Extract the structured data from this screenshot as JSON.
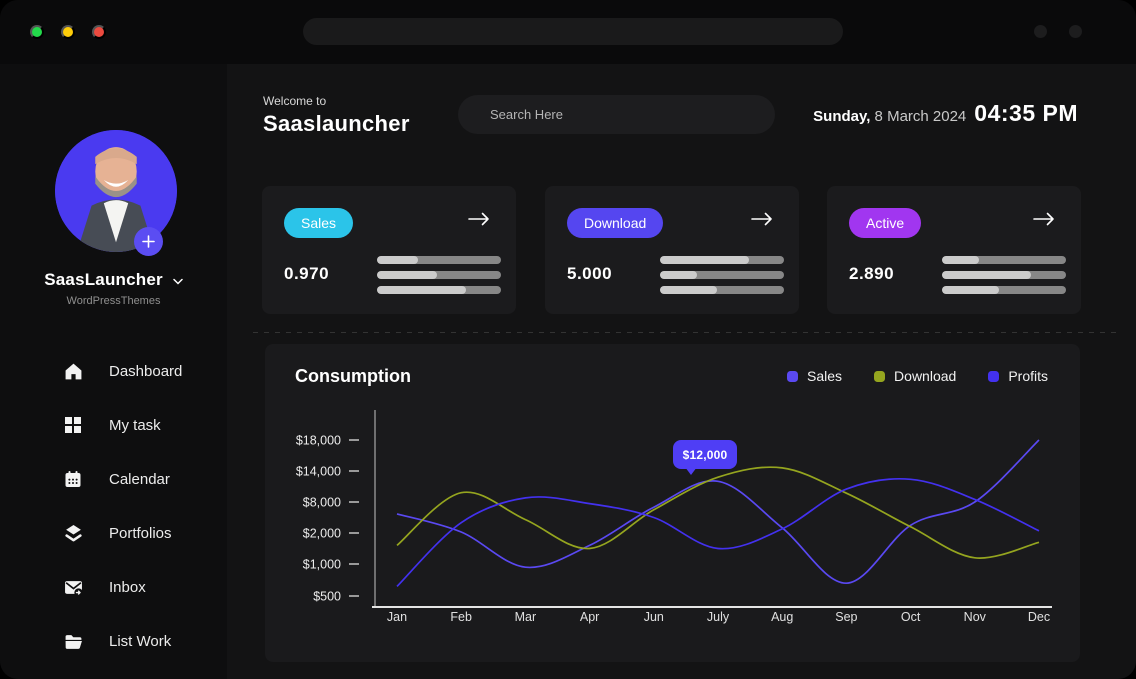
{
  "colors": {
    "accent_cyan": "#2bc4e9",
    "accent_indigo": "#5546f0",
    "accent_purple": "#a136f0",
    "bar_fill_light": "#cbcbcb",
    "bar_track_dark": "#878787",
    "tooltip_bg": "#4f3ef5",
    "avatar_bg": "#4a3af0"
  },
  "sidebar": {
    "profile": {
      "name": "SaasLauncher",
      "subtitle": "WordPressThemes"
    },
    "items": [
      {
        "label": "Dashboard",
        "icon": "home-icon"
      },
      {
        "label": "My task",
        "icon": "grid-icon"
      },
      {
        "label": "Calendar",
        "icon": "calendar-icon"
      },
      {
        "label": "Portfolios",
        "icon": "layers-icon"
      },
      {
        "label": "Inbox",
        "icon": "inbox-icon"
      },
      {
        "label": "List Work",
        "icon": "folder-icon"
      }
    ]
  },
  "header": {
    "welcome": "Welcome to",
    "title": "Saaslauncher",
    "search_placeholder": "Search Here",
    "date_day": "Sunday,",
    "date": " 8 March 2024",
    "time": "04:35 PM"
  },
  "cards": [
    {
      "badge": "Sales",
      "badge_color": "#2bc4e9",
      "value": "0.970",
      "bars": [
        33,
        48,
        72
      ]
    },
    {
      "badge": "Download",
      "badge_color": "#5546f0",
      "value": "5.000",
      "bars": [
        72,
        30,
        46
      ]
    },
    {
      "badge": "Active",
      "badge_color": "#a136f0",
      "value": "2.890",
      "bars": [
        30,
        72,
        46
      ]
    }
  ],
  "chart_data": {
    "type": "line",
    "title": "Consumption",
    "categories": [
      "Jan",
      "Feb",
      "Mar",
      "Apr",
      "Jun",
      "July",
      "Aug",
      "Sep",
      "Oct",
      "Nov",
      "Dec"
    ],
    "y_axis": {
      "tick_labels": [
        "$500",
        "$1,000",
        "$2,000",
        "$8,000",
        "$14,000",
        "$18,000"
      ],
      "tick_values": [
        500,
        1000,
        2000,
        8000,
        14000,
        18000
      ],
      "scale": "non-linear, ticks equally spaced"
    },
    "series": [
      {
        "name": "Sales",
        "color": "#5a49f2",
        "values": [
          5700,
          2200,
          950,
          1600,
          7000,
          12000,
          3000,
          700,
          3500,
          8000,
          18000
        ]
      },
      {
        "name": "Download",
        "color": "#95a51f",
        "values": [
          1600,
          9800,
          4600,
          1500,
          6500,
          12800,
          14400,
          9700,
          3200,
          1200,
          1700
        ]
      },
      {
        "name": "Profits",
        "color": "#4331ef",
        "values": [
          650,
          4000,
          8800,
          7700,
          5000,
          1500,
          2800,
          10500,
          12400,
          8500,
          2400
        ]
      }
    ],
    "tooltip": {
      "text": "$12,000",
      "series": "Sales",
      "category": "July",
      "value": 12000
    },
    "legend_position": "top-right",
    "grid": false
  }
}
